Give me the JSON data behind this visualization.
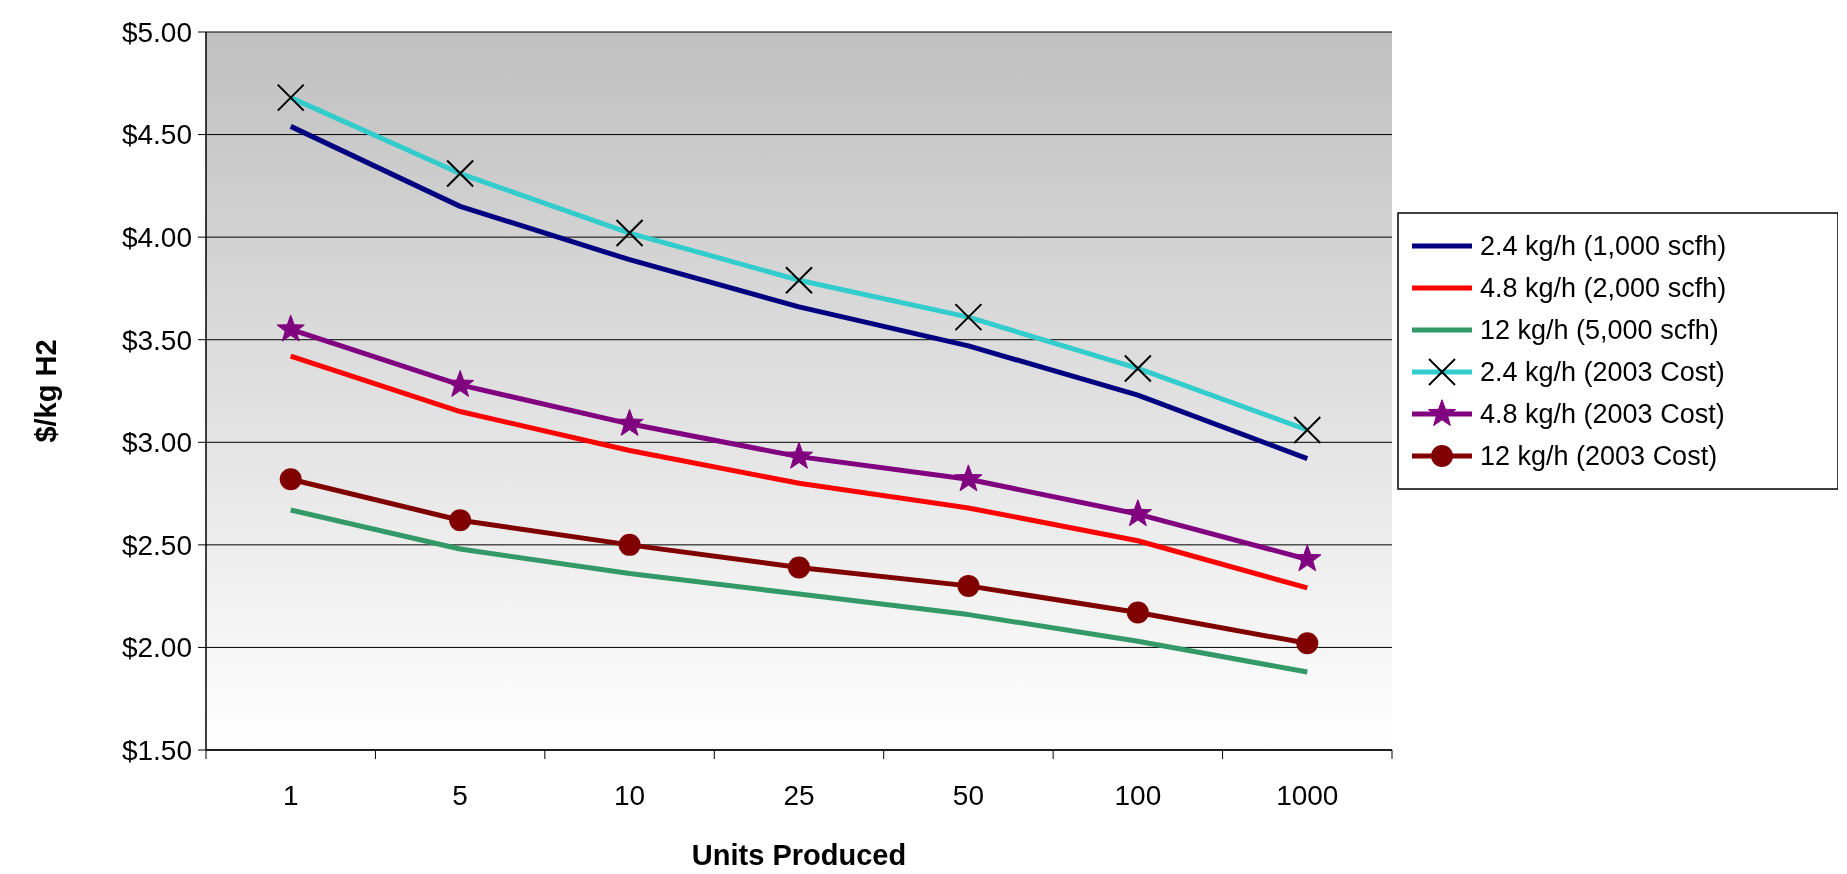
{
  "chart_data": {
    "type": "line",
    "xlabel": "Units Produced",
    "ylabel": "$/kg H2",
    "categories": [
      "1",
      "5",
      "10",
      "25",
      "50",
      "100",
      "1000"
    ],
    "ylim": [
      1.5,
      5
    ],
    "yticks": [
      {
        "value": 1.5,
        "label": "$1.50"
      },
      {
        "value": 2,
        "label": "$2.00"
      },
      {
        "value": 2.5,
        "label": "$2.50"
      },
      {
        "value": 3,
        "label": "$3.00"
      },
      {
        "value": 3.5,
        "label": "$3.50"
      },
      {
        "value": 4,
        "label": "$4.00"
      },
      {
        "value": 4.5,
        "label": "$4.50"
      },
      {
        "value": 5,
        "label": "$5.00"
      }
    ],
    "grid": "y",
    "legend": "right",
    "line_style": "solid",
    "series": [
      {
        "name": "2.4 kg/h (1,000 scfh)",
        "color": "#000080",
        "marker": "none",
        "values": [
          4.54,
          4.15,
          3.89,
          3.66,
          3.47,
          3.23,
          2.92
        ]
      },
      {
        "name": "4.8 kg/h (2,000 scfh)",
        "color": "#ff0000",
        "marker": "none",
        "values": [
          3.42,
          3.15,
          2.96,
          2.8,
          2.68,
          2.52,
          2.29
        ]
      },
      {
        "name": "12 kg/h (5,000 scfh)",
        "color": "#339966",
        "marker": "none",
        "values": [
          2.67,
          2.48,
          2.36,
          2.26,
          2.16,
          2.03,
          1.88
        ]
      },
      {
        "name": "2.4 kg/h (2003 Cost)",
        "color": "#33cccc",
        "marker": "cross",
        "values": [
          4.68,
          4.31,
          4.02,
          3.79,
          3.61,
          3.36,
          3.06
        ]
      },
      {
        "name": "4.8 kg/h (2003 Cost)",
        "color": "#800080",
        "marker": "star",
        "values": [
          3.55,
          3.28,
          3.09,
          2.93,
          2.82,
          2.65,
          2.43
        ]
      },
      {
        "name": "12 kg/h (2003 Cost)",
        "color": "#800000",
        "marker": "circle",
        "values": [
          2.82,
          2.62,
          2.5,
          2.39,
          2.3,
          2.17,
          2.02
        ]
      }
    ]
  }
}
